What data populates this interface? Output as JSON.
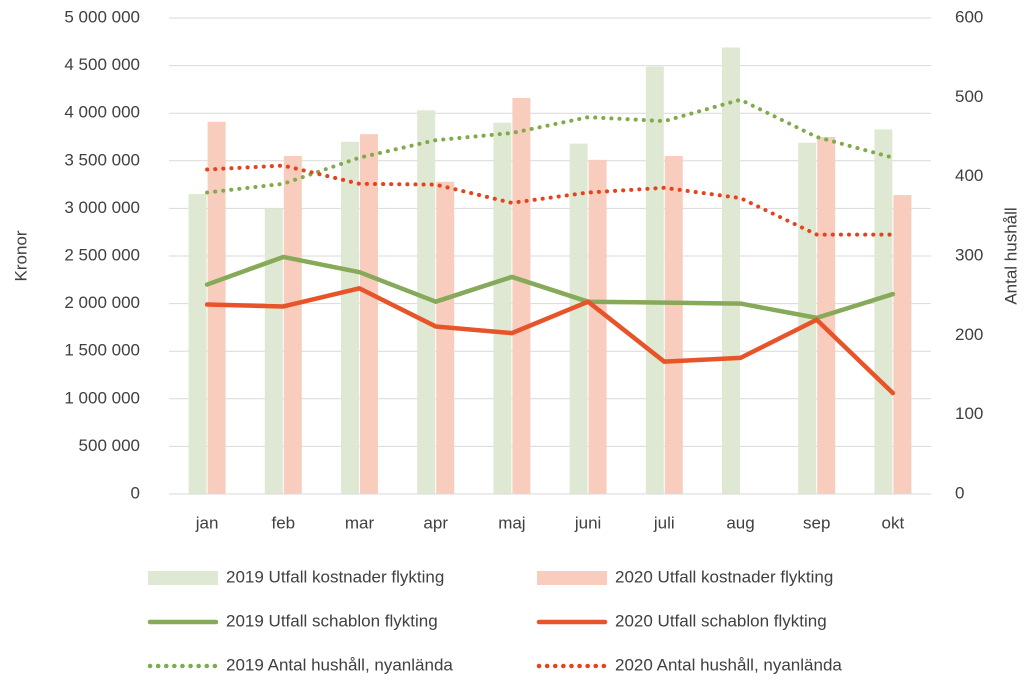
{
  "chart_data": {
    "type": "combo",
    "categories": [
      "jan",
      "feb",
      "mar",
      "apr",
      "maj",
      "juni",
      "juli",
      "aug",
      "sep",
      "okt"
    ],
    "ylabel": "Kronor",
    "y2label": "Antal hushåll",
    "ylim": [
      0,
      5000000
    ],
    "yticks": [
      0,
      {
        "value": 500000,
        "label": "500 000"
      },
      {
        "value": 1000000,
        "label": "1 000 000"
      },
      {
        "value": 1500000,
        "label": "1 500 000"
      },
      {
        "value": 2000000,
        "label": "2 000 000"
      },
      {
        "value": 2500000,
        "label": "2 500 000"
      },
      {
        "value": 3000000,
        "label": "3 000 000"
      },
      {
        "value": 3500000,
        "label": "3 500 000"
      },
      {
        "value": 4000000,
        "label": "4 000 000"
      },
      {
        "value": 4500000,
        "label": "4 500 000"
      },
      {
        "value": 5000000,
        "label": "5 000 000"
      }
    ],
    "y2lim": [
      0,
      600
    ],
    "y2ticks": [
      0,
      100,
      200,
      300,
      400,
      500,
      600
    ],
    "grid": true,
    "legend": "bottom",
    "series": [
      {
        "name": "2019 Utfall kostnader flykting",
        "type": "bar",
        "color": "#dfe8d3",
        "values": [
          3150000,
          3000000,
          3700000,
          4030000,
          3900000,
          3680000,
          4490000,
          4690000,
          3690000,
          3830000
        ]
      },
      {
        "name": "2020 Utfall kostnader flykting",
        "type": "bar",
        "color": "#f9cdbe",
        "values": [
          3910000,
          3550000,
          3780000,
          3280000,
          4160000,
          3510000,
          3550000,
          null,
          3750000,
          3140000
        ]
      },
      {
        "name": "2019 Utfall schablon flykting",
        "type": "line",
        "color": "#86a95a",
        "values": [
          2200000,
          2490000,
          2330000,
          2020000,
          2280000,
          2020000,
          2010000,
          2000000,
          1850000,
          2100000
        ]
      },
      {
        "name": "2020 Utfall schablon flykting",
        "type": "line",
        "color": "#e8542a",
        "values": [
          1990000,
          1970000,
          2160000,
          1760000,
          1690000,
          2020000,
          1390000,
          1430000,
          1830000,
          1060000
        ]
      },
      {
        "name": "2019 Antal hushåll, nyanlända",
        "type": "line",
        "dash": "dotted",
        "axis": "y2",
        "color": "#7fab4b",
        "values": [
          380,
          391,
          424,
          446,
          455,
          475,
          470,
          497,
          450,
          424
        ]
      },
      {
        "name": "2020 Antal hushåll, nyanlända",
        "type": "line",
        "dash": "dotted",
        "axis": "y2",
        "color": "#e8421c",
        "values": [
          409,
          414,
          391,
          390,
          367,
          380,
          386,
          373,
          327,
          327
        ]
      }
    ]
  }
}
